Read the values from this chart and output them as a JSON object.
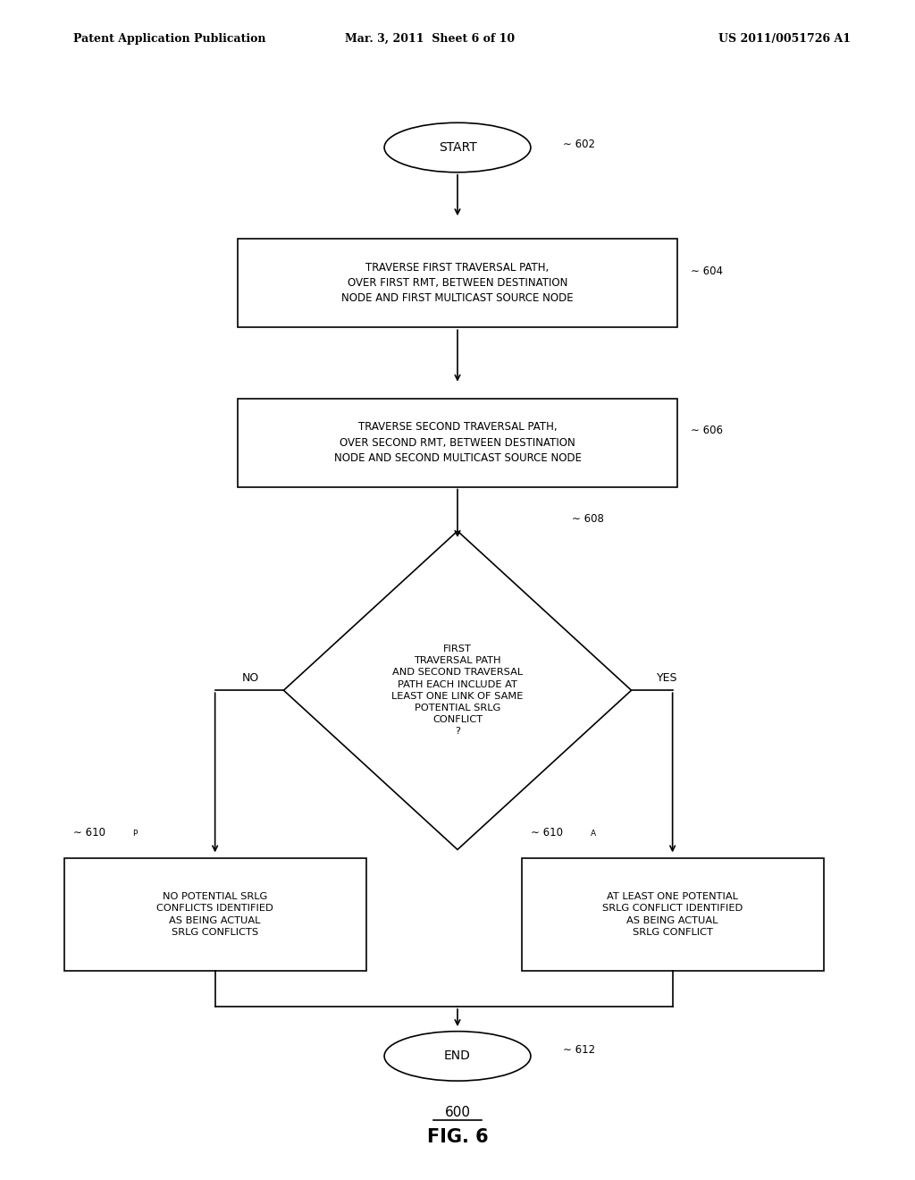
{
  "bg_color": "#ffffff",
  "header_left": "Patent Application Publication",
  "header_mid": "Mar. 3, 2011  Sheet 6 of 10",
  "header_right": "US 2011/0051726 A1",
  "fig_label": "FIG. 6",
  "fig_number": "600",
  "start_label": "START",
  "start_ref": "602",
  "box604_text": "TRAVERSE FIRST TRAVERSAL PATH,\nOVER FIRST RMT, BETWEEN DESTINATION\nNODE AND FIRST MULTICAST SOURCE NODE",
  "box604_ref": "604",
  "box606_text": "TRAVERSE SECOND TRAVERSAL PATH,\nOVER SECOND RMT, BETWEEN DESTINATION\nNODE AND SECOND MULTICAST SOURCE NODE",
  "box606_ref": "606",
  "diamond608_text": "FIRST\nTRAVERSAL PATH\nAND SECOND TRAVERSAL\nPATH EACH INCLUDE AT\nLEAST ONE LINK OF SAME\nPOTENTIAL SRLG\nCONFLICT\n?",
  "diamond608_ref": "608",
  "no_label": "NO",
  "yes_label": "YES",
  "box610P_text": "NO POTENTIAL SRLG\nCONFLICTS IDENTIFIED\nAS BEING ACTUAL\nSRLG CONFLICTS",
  "box610P_ref": "610",
  "box610P_sub": "P",
  "box610A_text": "AT LEAST ONE POTENTIAL\nSRLG CONFLICT IDENTIFIED\nAS BEING ACTUAL\nSRLG CONFLICT",
  "box610A_ref": "610",
  "box610A_sub": "A",
  "end_label": "END",
  "end_ref": "612"
}
